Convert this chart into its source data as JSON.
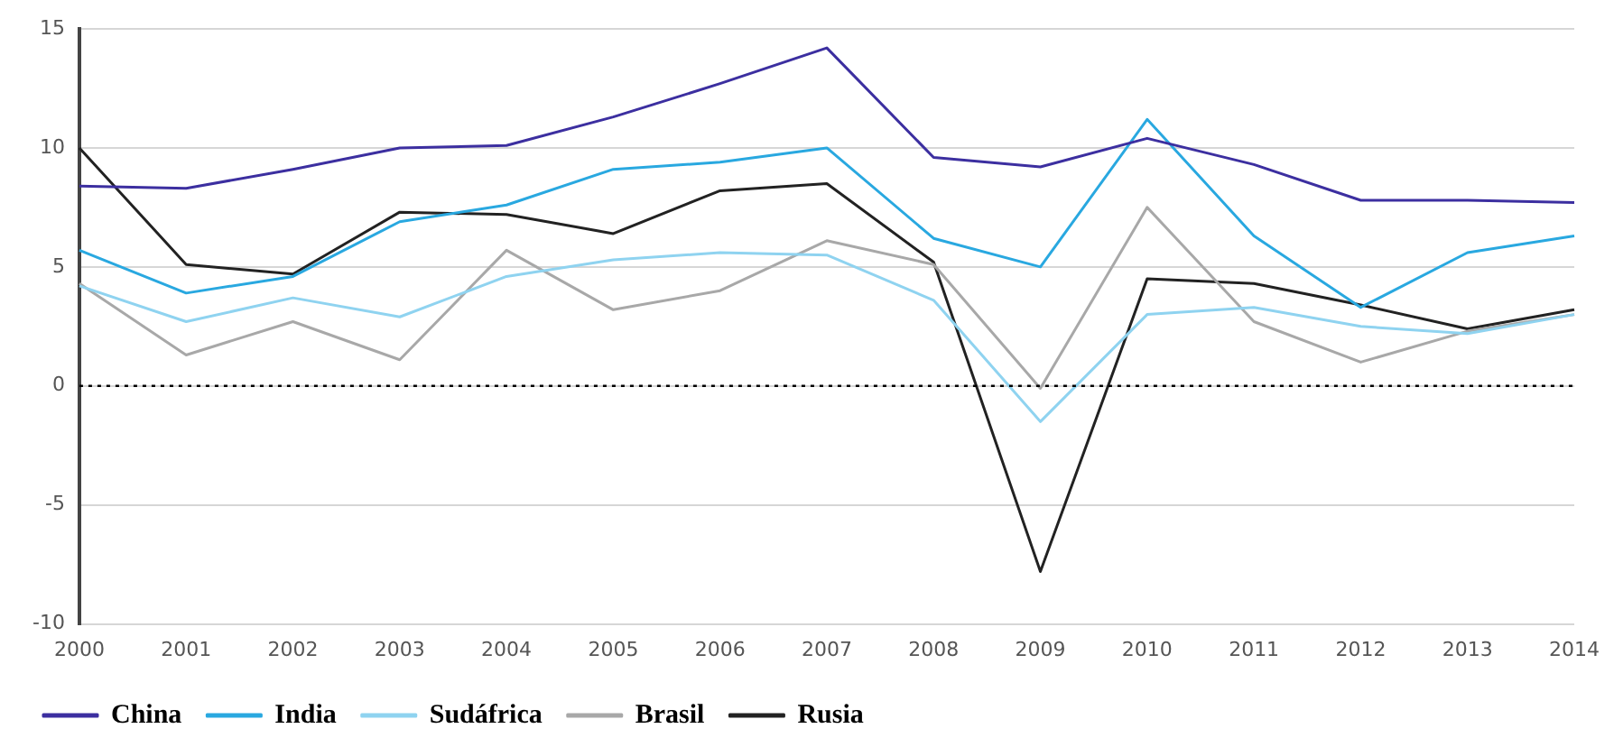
{
  "chart_data": {
    "type": "line",
    "categories": [
      "2000",
      "2001",
      "2002",
      "2003",
      "2004",
      "2005",
      "2006",
      "2007",
      "2008",
      "2009",
      "2010",
      "2011",
      "2012",
      "2013",
      "2014"
    ],
    "series": [
      {
        "name": "China",
        "color": "#3c2fa0",
        "values": [
          8.4,
          8.3,
          9.1,
          10.0,
          10.1,
          11.3,
          12.7,
          14.2,
          9.6,
          9.2,
          10.4,
          9.3,
          7.8,
          7.8,
          7.7
        ]
      },
      {
        "name": "India",
        "color": "#29a8e0",
        "values": [
          5.7,
          3.9,
          4.6,
          6.9,
          7.6,
          9.1,
          9.4,
          10.0,
          6.2,
          5.0,
          11.2,
          6.3,
          3.3,
          5.6,
          6.3
        ]
      },
      {
        "name": "Sudáfrica",
        "color": "#8fd3f0",
        "values": [
          4.2,
          2.7,
          3.7,
          2.9,
          4.6,
          5.3,
          5.6,
          5.5,
          3.6,
          -1.5,
          3.0,
          3.3,
          2.5,
          2.2,
          3.0
        ]
      },
      {
        "name": "Brasil",
        "color": "#a8a8a8",
        "values": [
          4.3,
          1.3,
          2.7,
          1.1,
          5.7,
          3.2,
          4.0,
          6.1,
          5.1,
          -0.1,
          7.5,
          2.7,
          1.0,
          2.3,
          3.0
        ]
      },
      {
        "name": "Rusia",
        "color": "#222222",
        "values": [
          10.0,
          5.1,
          4.7,
          7.3,
          7.2,
          6.4,
          8.2,
          8.5,
          5.2,
          -7.8,
          4.5,
          4.3,
          3.4,
          2.4,
          3.2
        ]
      }
    ],
    "ylim": [
      -10,
      15
    ],
    "yticks": [
      -10,
      -5,
      0,
      5,
      10,
      15
    ],
    "grid": "y",
    "legend": "bottom left",
    "marker": "none",
    "line_style": "solid",
    "ref_lines": [
      {
        "axis": "y",
        "value": 0,
        "color": "#000000",
        "line_style": "dotted"
      }
    ]
  }
}
